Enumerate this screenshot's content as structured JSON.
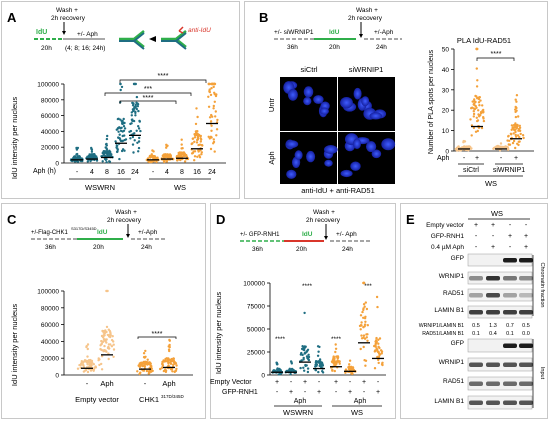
{
  "panels": {
    "A": {
      "label": "A",
      "schematic": {
        "idu": "IdU",
        "wash": "Wash +",
        "recovery": "2h recovery",
        "aph": "+/- Aph",
        "t1": "20h",
        "t2": "(4; 8; 16; 24h)",
        "anti": "anti-IdU"
      },
      "ylabel": "IdU intensity per nucleus",
      "xlabel": "Aph (h)",
      "yticks": [
        "0",
        "20000",
        "40000",
        "60000",
        "80000",
        "100000"
      ],
      "xticks": [
        "-",
        "4",
        "8",
        "16",
        "24",
        "-",
        "4",
        "8",
        "16",
        "24"
      ],
      "groups": [
        "WSWRN",
        "WS"
      ],
      "sig": [
        "****",
        "***",
        "****"
      ]
    },
    "B": {
      "label": "B",
      "schematic": {
        "si": "+/- siWRNIP1",
        "wash": "Wash +",
        "recovery": "2h recovery",
        "idu": "IdU",
        "aph": "+/-Aph",
        "t1": "36h",
        "t2": "20h",
        "t3": "24h"
      },
      "col_headers": [
        "siCtrl",
        "siWRNIP1"
      ],
      "row_labels": [
        "Untr",
        "Aph"
      ],
      "caption": "anti-IdU + anti-RAD51",
      "chart_title": "PLA IdU-RAD51",
      "ylabel": "Number of PLA spots per nucleus",
      "yticks": [
        "0",
        "10",
        "20",
        "30",
        "40",
        "50"
      ],
      "aph_row": [
        "Aph",
        "-",
        "+",
        "-",
        "+"
      ],
      "groups": [
        "siCtrl",
        "siWRNIP1"
      ],
      "cell": "WS",
      "sig": "****"
    },
    "C": {
      "label": "C",
      "schematic": {
        "flag": "+/-Flag-CHK1",
        "sup": "S317D/S345D",
        "wash": "Wash +",
        "recovery": "2h recovery",
        "idu": "IdU",
        "aph": "+/-Aph",
        "t1": "36h",
        "t2": "20h",
        "t3": "24h"
      },
      "ylabel": "IdU intensity per nucleus",
      "yticks": [
        "0",
        "20000",
        "40000",
        "60000",
        "80000",
        "100000"
      ],
      "xticks": [
        "-",
        "Aph",
        "-",
        "Aph"
      ],
      "groups": [
        "Empty vector",
        "CHK1"
      ],
      "group2_sup": "317D/345D",
      "sig": "****"
    },
    "D": {
      "label": "D",
      "schematic": {
        "gfp": "+/- GFP-RNH1",
        "wash": "Wash +",
        "recovery": "2h recovery",
        "idu": "IdU",
        "aph": "+/- Aph",
        "t1": "36h",
        "t2": "20h",
        "t3": "24h"
      },
      "ylabel": "IdU intensity per nucleus",
      "yticks": [
        "0",
        "25000",
        "50000",
        "75000",
        "100000"
      ],
      "row_labels": [
        "Empty Vector",
        "GFP-RNH1"
      ],
      "ev_signs": [
        "+",
        "-",
        "+",
        "-",
        "+",
        "-",
        "+",
        "-"
      ],
      "gfp_signs": [
        "-",
        "+",
        "-",
        "+",
        "-",
        "+",
        "-",
        "+"
      ],
      "aph": [
        "Aph",
        "Aph"
      ],
      "groups": [
        "WSWRN",
        "WS"
      ],
      "sig": [
        "****",
        "****",
        "****",
        "***"
      ]
    },
    "E": {
      "label": "E",
      "cell": "WS",
      "cond_labels": [
        "Empty vector",
        "GFP-RNH1",
        "0.4 µM Aph"
      ],
      "cond_signs": [
        [
          "+",
          "+",
          "-",
          "-"
        ],
        [
          "-",
          "-",
          "+",
          "+"
        ],
        [
          "-",
          "+",
          "-",
          "+"
        ]
      ],
      "blot_labels_top": [
        "GFP",
        "WRNIP1",
        "RAD51",
        "LAMIN B1"
      ],
      "fraction": "Chromatin fraction",
      "ratio_labels": [
        "WRNIP1/LAMIN B1",
        "RAD51/LAMIN B1"
      ],
      "ratio_values": [
        [
          "0.5",
          "1.3",
          "0.7",
          "0.5"
        ],
        [
          "0.1",
          "0.4",
          "0.1",
          "0.0"
        ]
      ],
      "blot_labels_bottom": [
        "GFP",
        "WRNIP1",
        "RAD51",
        "LAMIN B1"
      ],
      "input": "Input"
    }
  },
  "colors": {
    "teal": "#1f6e82",
    "orange": "#f4a13a",
    "lightorange": "#f6c48a",
    "green": "#2fae4a",
    "red": "#d9362b"
  },
  "chart_data": [
    {
      "type": "scatter",
      "panel": "A",
      "ylim": [
        0,
        100000
      ],
      "categories": [
        "WSWRN -",
        "WSWRN 4",
        "WSWRN 8",
        "WSWRN 16",
        "WSWRN 24",
        "WS -",
        "WS 4",
        "WS 8",
        "WS 16",
        "WS 24"
      ],
      "values": [
        4000,
        5000,
        7000,
        25000,
        35000,
        4000,
        5000,
        6000,
        18000,
        50000
      ]
    },
    {
      "type": "scatter",
      "panel": "B",
      "ylim": [
        0,
        50
      ],
      "categories": [
        "siCtrl -",
        "siCtrl +",
        "siWRNIP1 -",
        "siWRNIP1 +"
      ],
      "values": [
        1,
        12,
        1,
        6
      ]
    },
    {
      "type": "scatter",
      "panel": "C",
      "ylim": [
        0,
        100000
      ],
      "categories": [
        "Empty vector -",
        "Empty vector Aph",
        "CHK1 -",
        "CHK1 Aph"
      ],
      "values": [
        8000,
        24000,
        7000,
        9000
      ]
    },
    {
      "type": "scatter",
      "panel": "D",
      "ylim": [
        0,
        100000
      ],
      "categories": [
        "WSWRN 1",
        "WSWRN 2",
        "WSWRN 3",
        "WSWRN 4",
        "WS 1",
        "WS 2",
        "WS 3",
        "WS 4"
      ],
      "values": [
        3000,
        3000,
        14000,
        7000,
        9000,
        4000,
        35000,
        18000
      ]
    }
  ]
}
